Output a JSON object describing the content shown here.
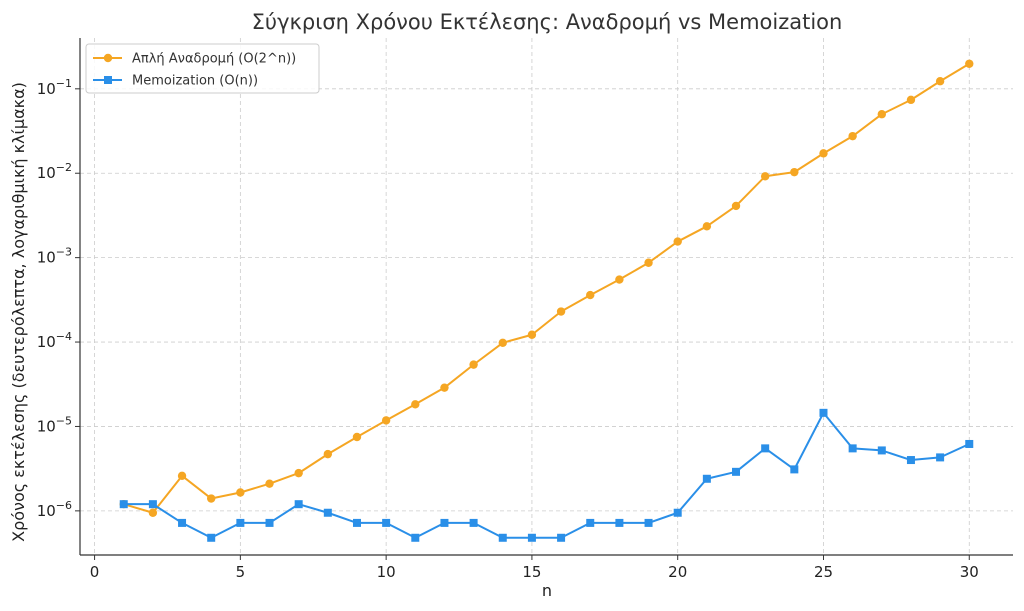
{
  "chart_data": {
    "type": "line",
    "title": "Σύγκριση Χρόνου Εκτέλεσης: Αναδρομή vs Memoization",
    "xlabel": "n",
    "ylabel": "Χρόνος εκτέλεσης (δευτερόλεπτα, λογαριθμική κλίμακα)",
    "yscale": "log",
    "xlim": [
      -0.5,
      31.5
    ],
    "ylim": [
      3e-07,
      0.4
    ],
    "grid": true,
    "legend_position": "top-left",
    "x_ticks": [
      {
        "value": 0,
        "label": "0"
      },
      {
        "value": 5,
        "label": "5"
      },
      {
        "value": 10,
        "label": "10"
      },
      {
        "value": 15,
        "label": "15"
      },
      {
        "value": 20,
        "label": "20"
      },
      {
        "value": 25,
        "label": "25"
      },
      {
        "value": 30,
        "label": "30"
      }
    ],
    "y_ticks": [
      {
        "value": 1e-06,
        "base": "10",
        "exp": "−6"
      },
      {
        "value": 1e-05,
        "base": "10",
        "exp": "−5"
      },
      {
        "value": 0.0001,
        "base": "10",
        "exp": "−4"
      },
      {
        "value": 0.001,
        "base": "10",
        "exp": "−3"
      },
      {
        "value": 0.01,
        "base": "10",
        "exp": "−2"
      },
      {
        "value": 0.1,
        "base": "10",
        "exp": "−1"
      }
    ],
    "x": [
      1,
      2,
      3,
      4,
      5,
      6,
      7,
      8,
      9,
      10,
      11,
      12,
      13,
      14,
      15,
      16,
      17,
      18,
      19,
      20,
      21,
      22,
      23,
      24,
      25,
      26,
      27,
      28,
      29,
      30
    ],
    "series": [
      {
        "name": "Απλή Αναδρομή (O(2^n))",
        "color": "#F5A623",
        "marker": "circle",
        "values": [
          1.2e-06,
          9.5e-07,
          2.6e-06,
          1.4e-06,
          1.65e-06,
          2.1e-06,
          2.8e-06,
          4.7e-06,
          7.5e-06,
          1.18e-05,
          1.83e-05,
          2.88e-05,
          5.4e-05,
          9.8e-05,
          0.000122,
          0.00023,
          0.00036,
          0.00055,
          0.00087,
          0.00155,
          0.00235,
          0.0041,
          0.0092,
          0.0103,
          0.0172,
          0.0275,
          0.05,
          0.074,
          0.123,
          0.198
        ]
      },
      {
        "name": "Memoization (O(n))",
        "color": "#2A8FE8",
        "marker": "square",
        "values": [
          1.2e-06,
          1.2e-06,
          7.2e-07,
          4.8e-07,
          7.2e-07,
          7.2e-07,
          1.2e-06,
          9.5e-07,
          7.2e-07,
          7.2e-07,
          4.8e-07,
          7.2e-07,
          7.2e-07,
          4.8e-07,
          4.8e-07,
          4.8e-07,
          7.2e-07,
          7.2e-07,
          7.2e-07,
          9.5e-07,
          2.4e-06,
          2.9e-06,
          5.5e-06,
          3.1e-06,
          1.45e-05,
          5.5e-06,
          5.2e-06,
          4e-06,
          4.3e-06,
          6.2e-06
        ]
      }
    ]
  }
}
